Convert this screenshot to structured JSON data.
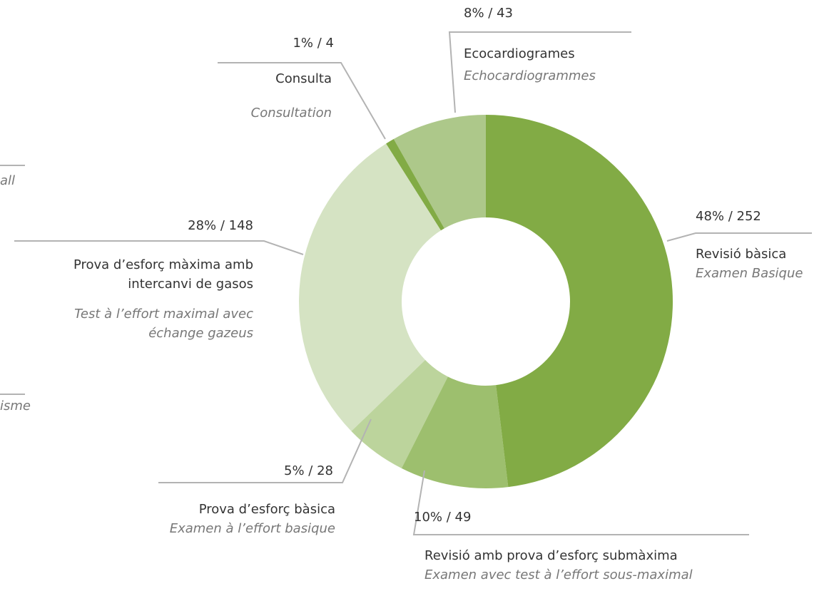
{
  "chart_data": {
    "type": "donut",
    "categories": [
      "Revisió bàsica",
      "Revisió amb prova d’esforç submàxima",
      "Prova d’esforç bàsica",
      "Prova d’esforç màxima amb intercanvi de gasos",
      "Consulta",
      "Ecocardiogrames"
    ],
    "categories_fr": [
      "Examen Basique",
      "Examen avec test à l’effort sous-maximal",
      "Examen à l’effort basique",
      "Test à l’effort maximal avec échange gazeus",
      "Consultation",
      "Echocardiogrammes"
    ],
    "values": [
      252,
      49,
      28,
      148,
      4,
      43
    ],
    "value_labels": [
      "48% / 252",
      "10% / 49",
      "5% / 28",
      "28% / 148",
      "1% / 4",
      "8% / 43"
    ],
    "colors": [
      "#82ab45",
      "#9dbf6e",
      "#bcd49c",
      "#d5e3c3",
      "#82ab45",
      "#adc88a"
    ],
    "clipped_labels": [
      "all",
      "isme"
    ]
  }
}
